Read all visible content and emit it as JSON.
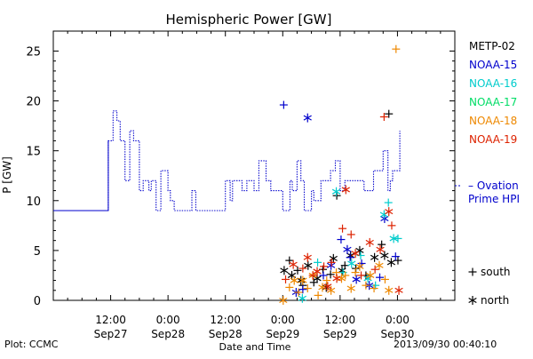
{
  "chart_data": {
    "type": "scatter",
    "title": "Hemispheric Power [GW]",
    "xlabel": "Date and Time",
    "ylabel": "P [GW]",
    "x_unit": "hours",
    "xlim": [
      -12,
      72
    ],
    "ylim": [
      0,
      27
    ],
    "grid": false,
    "y_ticks": [
      "0",
      "5",
      "10",
      "15",
      "20",
      "25"
    ],
    "x_ticks": [
      {
        "x": 0,
        "label1": "12:00",
        "label2": "Sep27"
      },
      {
        "x": 12,
        "label1": "0:00",
        "label2": "Sep28"
      },
      {
        "x": 24,
        "label1": "12:00",
        "label2": "Sep28"
      },
      {
        "x": 36,
        "label1": "0:00",
        "label2": "Sep29"
      },
      {
        "x": 48,
        "label1": "12:00",
        "label2": "Sep29"
      },
      {
        "x": 60,
        "label1": "0:00",
        "label2": "Sep30"
      }
    ],
    "line_series": {
      "name": "Ovation Prime HPI",
      "label_lines": [
        "– Ovation",
        "Prime HPI"
      ],
      "color": "#0000cc",
      "points": [
        [
          -12,
          9
        ],
        [
          -0.5,
          9
        ],
        [
          -0.5,
          16
        ],
        [
          0.5,
          16
        ],
        [
          0.5,
          19
        ],
        [
          1.3,
          19
        ],
        [
          1.3,
          18
        ],
        [
          2,
          18
        ],
        [
          2,
          16
        ],
        [
          3,
          16
        ],
        [
          3,
          12
        ],
        [
          4,
          12
        ],
        [
          4,
          17
        ],
        [
          4.8,
          17
        ],
        [
          4.8,
          16
        ],
        [
          6,
          16
        ],
        [
          6,
          11
        ],
        [
          6.8,
          11
        ],
        [
          6.8,
          12
        ],
        [
          8,
          12
        ],
        [
          8,
          11
        ],
        [
          8.5,
          11
        ],
        [
          8.5,
          12
        ],
        [
          9.5,
          12
        ],
        [
          9.5,
          9
        ],
        [
          10.5,
          9
        ],
        [
          10.5,
          13
        ],
        [
          12,
          13
        ],
        [
          12,
          11
        ],
        [
          12.5,
          11
        ],
        [
          12.5,
          10
        ],
        [
          13.3,
          10
        ],
        [
          13.3,
          9
        ],
        [
          17,
          9
        ],
        [
          17,
          11
        ],
        [
          17.8,
          11
        ],
        [
          17.8,
          9
        ],
        [
          24,
          9
        ],
        [
          24,
          12
        ],
        [
          25,
          12
        ],
        [
          25,
          10
        ],
        [
          25.5,
          10
        ],
        [
          25.5,
          12
        ],
        [
          27.5,
          12
        ],
        [
          27.5,
          11
        ],
        [
          28.5,
          11
        ],
        [
          28.5,
          12
        ],
        [
          30,
          12
        ],
        [
          30,
          11
        ],
        [
          31,
          11
        ],
        [
          31,
          14
        ],
        [
          32.5,
          14
        ],
        [
          32.5,
          12
        ],
        [
          33.5,
          12
        ],
        [
          33.5,
          11
        ],
        [
          36,
          11
        ],
        [
          36,
          9
        ],
        [
          37.5,
          9
        ],
        [
          37.5,
          12
        ],
        [
          38,
          12
        ],
        [
          38,
          11
        ],
        [
          39,
          11
        ],
        [
          39,
          14
        ],
        [
          39.8,
          14
        ],
        [
          39.8,
          12
        ],
        [
          40.5,
          12
        ],
        [
          40.5,
          9
        ],
        [
          42,
          9
        ],
        [
          42,
          11
        ],
        [
          42.5,
          11
        ],
        [
          42.5,
          10
        ],
        [
          44,
          10
        ],
        [
          44,
          12
        ],
        [
          46,
          12
        ],
        [
          46,
          13
        ],
        [
          47,
          13
        ],
        [
          47,
          14
        ],
        [
          48,
          14
        ],
        [
          48,
          11
        ],
        [
          49,
          11
        ],
        [
          49,
          12
        ],
        [
          53,
          12
        ],
        [
          53,
          11
        ],
        [
          55,
          11
        ],
        [
          55,
          13
        ],
        [
          57,
          13
        ],
        [
          57,
          15
        ],
        [
          58,
          15
        ],
        [
          58,
          11
        ],
        [
          58.5,
          11
        ],
        [
          58.5,
          12
        ],
        [
          59,
          12
        ],
        [
          59,
          13
        ],
        [
          60.5,
          13
        ],
        [
          60.5,
          17
        ]
      ],
      "solid_until": -0.5
    },
    "series": [
      {
        "name": "METP-02",
        "color": "#000000",
        "points": [
          [
            36.3,
            3
          ],
          [
            37.4,
            4
          ],
          [
            37.9,
            2.5
          ],
          [
            39.1,
            3
          ],
          [
            39.8,
            2
          ],
          [
            40.2,
            1.5
          ],
          [
            41.3,
            3.5
          ],
          [
            42.5,
            1.8
          ],
          [
            43.2,
            2.2
          ],
          [
            44.4,
            3.1
          ],
          [
            45.1,
            1.3
          ],
          [
            46,
            2.6
          ],
          [
            46.6,
            4.2
          ],
          [
            47.3,
            10.5
          ],
          [
            48.4,
            3
          ],
          [
            49,
            3.5
          ],
          [
            50.2,
            4.5
          ],
          [
            51.3,
            3.2
          ],
          [
            52.1,
            5
          ],
          [
            53.4,
            2.5
          ],
          [
            55.2,
            4.3
          ],
          [
            56.7,
            5.6
          ],
          [
            57.3,
            4.5
          ],
          [
            58.2,
            18.7
          ],
          [
            58.7,
            3.8
          ],
          [
            60.1,
            4
          ]
        ]
      },
      {
        "name": "NOAA-15",
        "color": "#0000cc",
        "points": [
          [
            36.2,
            19.6
          ],
          [
            38.8,
            0.8
          ],
          [
            40.2,
            1.1
          ],
          [
            41.2,
            18.3
          ],
          [
            44.5,
            2.5
          ],
          [
            46.1,
            3.5
          ],
          [
            48.2,
            6.1
          ],
          [
            49.5,
            5.1
          ],
          [
            50.1,
            4.3
          ],
          [
            51.4,
            2.1
          ],
          [
            52.5,
            3.7
          ],
          [
            54.1,
            1.5
          ],
          [
            56.3,
            2.3
          ],
          [
            57.3,
            8.2
          ],
          [
            59.6,
            4.4
          ]
        ]
      },
      {
        "name": "NOAA-16",
        "color": "#00cccc",
        "points": [
          [
            40.1,
            0.2
          ],
          [
            43.3,
            3.8
          ],
          [
            47.2,
            10.9
          ],
          [
            48.6,
            2.8
          ],
          [
            50.4,
            3.7
          ],
          [
            52.3,
            4.5
          ],
          [
            53.8,
            2.2
          ],
          [
            55.4,
            1.5
          ],
          [
            57.2,
            8.6
          ],
          [
            58.1,
            9.8
          ],
          [
            59.2,
            6.2
          ],
          [
            60.1,
            6.2
          ]
        ]
      },
      {
        "name": "NOAA-17",
        "color": "#00dd66",
        "points": []
      },
      {
        "name": "NOAA-18",
        "color": "#ee8800",
        "points": [
          [
            36.1,
            0
          ],
          [
            37.4,
            1.3
          ],
          [
            38.4,
            2
          ],
          [
            39.3,
            0.8
          ],
          [
            40.2,
            2
          ],
          [
            41.2,
            1.2
          ],
          [
            42.3,
            2.5
          ],
          [
            43.4,
            0.5
          ],
          [
            44.3,
            1.3
          ],
          [
            45.2,
            2
          ],
          [
            46.1,
            1
          ],
          [
            47.2,
            2.8
          ],
          [
            48.3,
            2.2
          ],
          [
            49.1,
            2.5
          ],
          [
            50.3,
            1.2
          ],
          [
            51.2,
            2.8
          ],
          [
            52.1,
            3.4
          ],
          [
            53.4,
            1.5
          ],
          [
            54.3,
            2.5
          ],
          [
            55.1,
            1.2
          ],
          [
            56.2,
            3.5
          ],
          [
            57.4,
            2.1
          ],
          [
            58.2,
            1
          ],
          [
            59.7,
            25.2
          ]
        ]
      },
      {
        "name": "NOAA-19",
        "color": "#dd2200",
        "points": [
          [
            36.6,
            2.1
          ],
          [
            38.2,
            3.6
          ],
          [
            40.2,
            3.2
          ],
          [
            41.2,
            4.3
          ],
          [
            42.3,
            2.5
          ],
          [
            43.2,
            2.9
          ],
          [
            44.6,
            3.4
          ],
          [
            45.4,
            1.4
          ],
          [
            46.2,
            3.8
          ],
          [
            47.3,
            2.2
          ],
          [
            48.5,
            7.2
          ],
          [
            49.2,
            11.1
          ],
          [
            50.3,
            6.6
          ],
          [
            51.2,
            4.7
          ],
          [
            52.4,
            2.5
          ],
          [
            54.2,
            5.8
          ],
          [
            55.3,
            3.1
          ],
          [
            56.4,
            5.1
          ],
          [
            57.2,
            18.4
          ],
          [
            58.2,
            8.9
          ],
          [
            58.8,
            7.5
          ],
          [
            60.3,
            1
          ]
        ]
      }
    ],
    "symbol_legend": [
      {
        "symbol": "+",
        "label": "south"
      },
      {
        "symbol": "*",
        "label": "north"
      }
    ],
    "legend_position": "right"
  },
  "footer": {
    "plot_label": "Plot: CCMC",
    "timestamp": "2013/09/30 00:40:10"
  }
}
